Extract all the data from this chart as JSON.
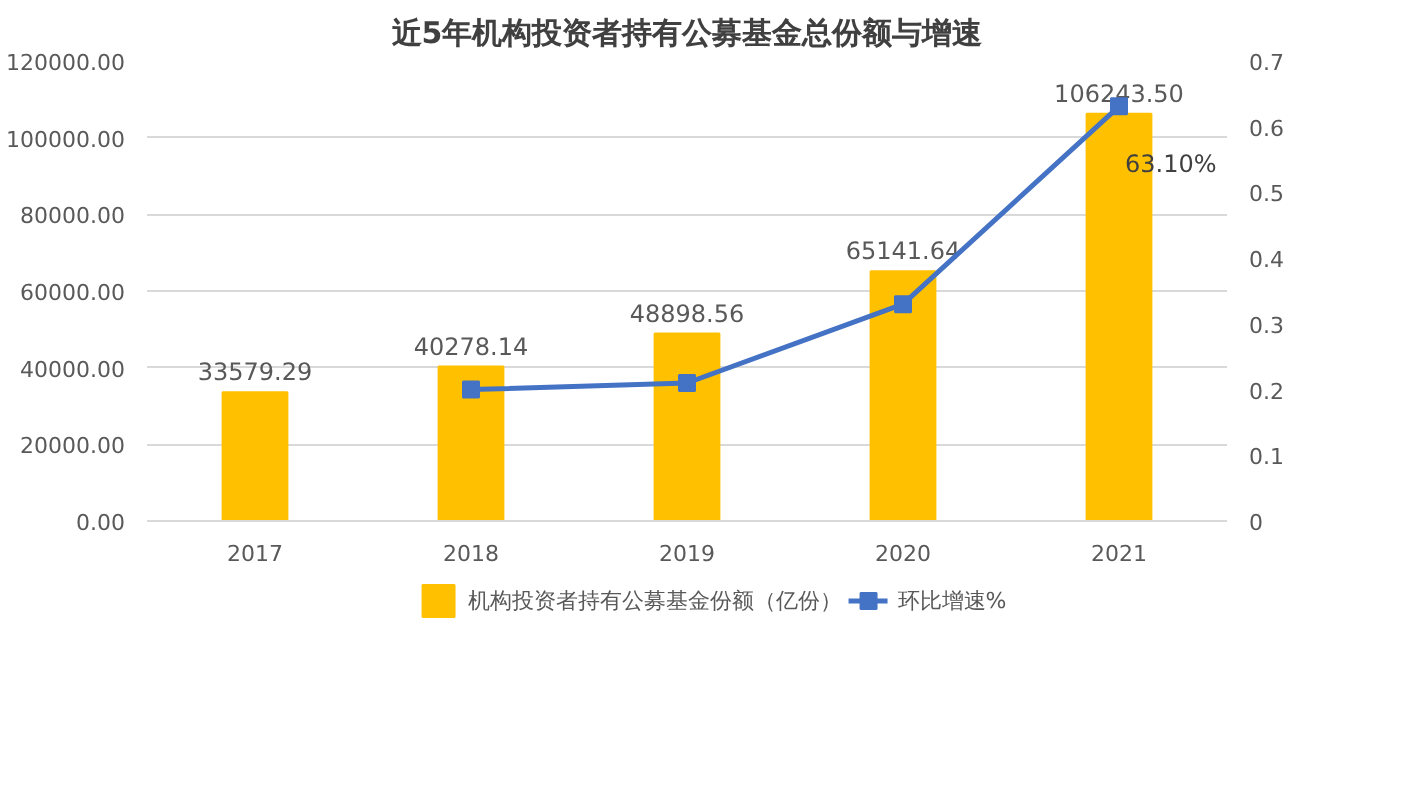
{
  "chart_data": {
    "type": "bar",
    "title": "近5年机构投资者持有公募基金总份额与增速",
    "categories": [
      "2017",
      "2018",
      "2019",
      "2020",
      "2021"
    ],
    "series": [
      {
        "name": "机构投资者持有公募基金份额（亿份）",
        "color": "#ffc000",
        "values": [
          33579.29,
          40278.14,
          48898.56,
          65141.64,
          106243.5
        ],
        "value_labels": [
          "33579.29",
          "40278.14",
          "48898.56",
          "65141.64",
          "106243.50"
        ]
      },
      {
        "name": "环比增速%",
        "type": "line",
        "axis": "y2",
        "color": "#4472c4",
        "marker": "square",
        "values": [
          null,
          0.2,
          0.21,
          0.33,
          0.631
        ],
        "value_labels": [
          null,
          null,
          null,
          null,
          "63.10%"
        ]
      }
    ],
    "ylim": [
      0,
      120000
    ],
    "yticks": [
      {
        "value": 0,
        "label": "0.00"
      },
      {
        "value": 20000,
        "label": "20000.00"
      },
      {
        "value": 40000,
        "label": "40000.00"
      },
      {
        "value": 60000,
        "label": "60000.00"
      },
      {
        "value": 80000,
        "label": "80000.00"
      },
      {
        "value": 100000,
        "label": "100000.00"
      },
      {
        "value": 120000,
        "label": "120000.00"
      }
    ],
    "y2lim": [
      0,
      0.7
    ],
    "y2ticks": [
      0,
      0.1,
      0.2,
      0.3,
      0.4,
      0.5,
      0.6,
      0.7
    ],
    "grid": "y",
    "legend": "bottom"
  }
}
